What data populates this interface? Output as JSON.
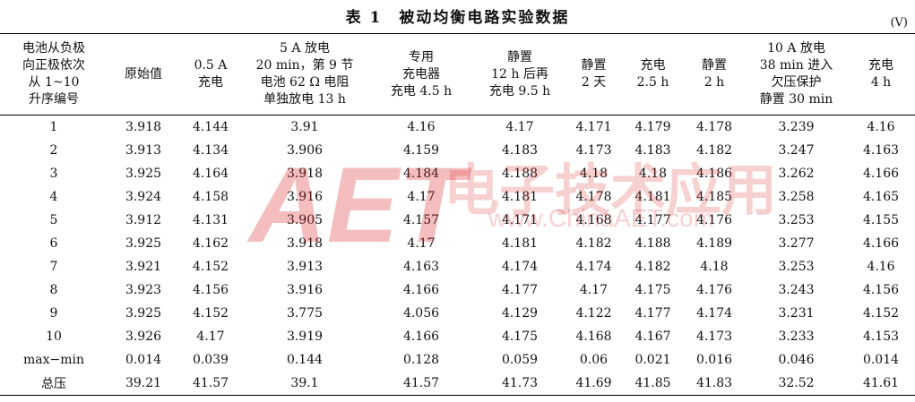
{
  "title": "表 1　被动均衡电路实验数据",
  "unit": "(V)",
  "table": {
    "header": [
      [
        "电池从负极",
        "向正极依次",
        "从 1~10",
        "升序编号"
      ],
      [
        "原始值"
      ],
      [
        "0.5 A",
        "充电"
      ],
      [
        "5 A 放电",
        "20 min，第 9 节",
        "电池 62 Ω 电阻",
        "单独放电 13 h"
      ],
      [
        "专用",
        "充电器",
        "充电 4.5 h"
      ],
      [
        "静置",
        "12 h 后再",
        "充电 9.5 h"
      ],
      [
        "静置",
        "2 天"
      ],
      [
        "充电",
        "2.5 h"
      ],
      [
        "静置",
        "2 h"
      ],
      [
        "10 A 放电",
        "38 min 进入",
        "欠压保护",
        "静置 30 min"
      ],
      [
        "充电",
        "4 h"
      ]
    ],
    "rows": [
      [
        "1",
        "3.918",
        "4.144",
        "3.91",
        "4.16",
        "4.17",
        "4.171",
        "4.179",
        "4.178",
        "3.239",
        "4.16"
      ],
      [
        "2",
        "3.913",
        "4.134",
        "3.906",
        "4.159",
        "4.183",
        "4.173",
        "4.183",
        "4.182",
        "3.247",
        "4.163"
      ],
      [
        "3",
        "3.925",
        "4.164",
        "3.918",
        "4.184",
        "4.188",
        "4.18",
        "4.18",
        "4.186",
        "3.262",
        "4.166"
      ],
      [
        "4",
        "3.924",
        "4.158",
        "3.916",
        "4.17",
        "4.181",
        "4.178",
        "4.181",
        "4.185",
        "3.258",
        "4.165"
      ],
      [
        "5",
        "3.912",
        "4.131",
        "3.905",
        "4.157",
        "4.171",
        "4.168",
        "4.177",
        "4.176",
        "3.253",
        "4.155"
      ],
      [
        "6",
        "3.925",
        "4.162",
        "3.918",
        "4.17",
        "4.181",
        "4.182",
        "4.188",
        "4.189",
        "3.277",
        "4.166"
      ],
      [
        "7",
        "3.921",
        "4.152",
        "3.913",
        "4.163",
        "4.174",
        "4.174",
        "4.182",
        "4.18",
        "3.253",
        "4.16"
      ],
      [
        "8",
        "3.923",
        "4.156",
        "3.916",
        "4.166",
        "4.177",
        "4.17",
        "4.175",
        "4.176",
        "3.243",
        "4.156"
      ],
      [
        "9",
        "3.925",
        "4.152",
        "3.775",
        "4.056",
        "4.129",
        "4.122",
        "4.177",
        "4.174",
        "3.231",
        "4.152"
      ],
      [
        "10",
        "3.926",
        "4.17",
        "3.919",
        "4.166",
        "4.175",
        "4.168",
        "4.167",
        "4.173",
        "3.233",
        "4.153"
      ],
      [
        "max−min",
        "0.014",
        "0.039",
        "0.144",
        "0.128",
        "0.059",
        "0.06",
        "0.021",
        "0.016",
        "0.046",
        "0.014"
      ],
      [
        "总压",
        "39.21",
        "41.57",
        "39.1",
        "41.57",
        "41.73",
        "41.69",
        "41.85",
        "41.83",
        "32.52",
        "41.61"
      ]
    ]
  },
  "watermark": {
    "logo": "AET",
    "brand": "电子技术应用",
    "url": "www.ChinaAET.com"
  }
}
